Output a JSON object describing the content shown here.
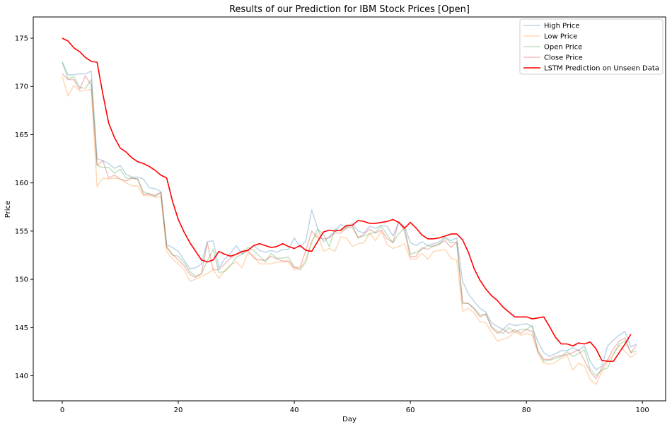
{
  "chart_data": {
    "type": "line",
    "title": "Results of our Prediction for IBM Stock Prices [Open]",
    "xlabel": "Day",
    "ylabel": "Price",
    "xlim": [
      -5,
      104
    ],
    "ylim": [
      137.4,
      177.2
    ],
    "xticks": [
      0,
      20,
      40,
      60,
      80,
      100
    ],
    "yticks": [
      140,
      145,
      150,
      155,
      160,
      165,
      170,
      175
    ],
    "grid": false,
    "legend_position": "top-right",
    "series": [
      {
        "name": "High Price",
        "color": "#1f77b4",
        "alpha": 0.3,
        "x": [
          0,
          1,
          2,
          3,
          4,
          5,
          6,
          7,
          8,
          9,
          10,
          11,
          12,
          13,
          14,
          15,
          16,
          17,
          18,
          19,
          20,
          21,
          22,
          23,
          24,
          25,
          26,
          27,
          28,
          29,
          30,
          31,
          32,
          33,
          34,
          35,
          36,
          37,
          38,
          39,
          40,
          41,
          42,
          43,
          44,
          45,
          46,
          47,
          48,
          49,
          50,
          51,
          52,
          53,
          54,
          55,
          56,
          57,
          58,
          59,
          60,
          61,
          62,
          63,
          64,
          65,
          66,
          67,
          68,
          69,
          70,
          71,
          72,
          73,
          74,
          75,
          76,
          77,
          78,
          79,
          80,
          81,
          82,
          83,
          84,
          85,
          86,
          87,
          88,
          89,
          90,
          91,
          92,
          93,
          94,
          95,
          96,
          97,
          98,
          99
        ],
        "values": [
          172.5,
          171.2,
          171.2,
          171.3,
          171.3,
          171.6,
          162.5,
          162.3,
          162.0,
          161.5,
          161.8,
          160.9,
          160.6,
          160.6,
          160.4,
          159.5,
          159.4,
          159.1,
          153.6,
          153.3,
          152.9,
          152.0,
          151.1,
          151.2,
          151.6,
          153.9,
          154.0,
          151.2,
          152.1,
          152.7,
          153.5,
          152.6,
          153.0,
          153.5,
          153.0,
          152.8,
          153.0,
          152.8,
          153.1,
          153.1,
          154.3,
          153.3,
          154.0,
          157.2,
          155.3,
          153.9,
          154.4,
          155.0,
          155.7,
          155.4,
          155.8,
          155.0,
          154.8,
          155.5,
          155.3,
          155.6,
          155.5,
          154.5,
          155.9,
          155.5,
          153.8,
          153.5,
          153.9,
          153.5,
          153.7,
          153.9,
          154.4,
          154.0,
          154.3,
          149.8,
          148.5,
          147.7,
          147.0,
          146.6,
          145.5,
          145.1,
          144.8,
          145.4,
          145.2,
          145.3,
          145.4,
          145.1,
          143.5,
          142.4,
          142.0,
          142.3,
          142.6,
          142.6,
          142.9,
          142.6,
          143.1,
          141.5,
          140.6,
          141.0,
          143.1,
          143.7,
          144.2,
          144.6,
          143.0,
          143.3
        ]
      },
      {
        "name": "Low Price",
        "color": "#ff7f0e",
        "alpha": 0.3,
        "x": [
          0,
          1,
          2,
          3,
          4,
          5,
          6,
          7,
          8,
          9,
          10,
          11,
          12,
          13,
          14,
          15,
          16,
          17,
          18,
          19,
          20,
          21,
          22,
          23,
          24,
          25,
          26,
          27,
          28,
          29,
          30,
          31,
          32,
          33,
          34,
          35,
          36,
          37,
          38,
          39,
          40,
          41,
          42,
          43,
          44,
          45,
          46,
          47,
          48,
          49,
          50,
          51,
          52,
          53,
          54,
          55,
          56,
          57,
          58,
          59,
          60,
          61,
          62,
          63,
          64,
          65,
          66,
          67,
          68,
          69,
          70,
          71,
          72,
          73,
          74,
          75,
          76,
          77,
          78,
          79,
          80,
          81,
          82,
          83,
          84,
          85,
          86,
          87,
          88,
          89,
          90,
          91,
          92,
          93,
          94,
          95,
          96,
          97,
          98,
          99
        ],
        "values": [
          171.0,
          169.0,
          170.1,
          169.5,
          169.6,
          169.7,
          159.6,
          160.5,
          160.4,
          160.5,
          160.4,
          160.0,
          159.7,
          159.7,
          158.7,
          158.7,
          158.5,
          158.6,
          152.9,
          152.1,
          151.6,
          151.0,
          149.8,
          150.0,
          150.3,
          150.6,
          151.0,
          150.1,
          150.9,
          151.5,
          151.8,
          151.2,
          152.8,
          152.4,
          151.6,
          151.6,
          151.6,
          151.8,
          151.8,
          151.8,
          151.0,
          151.1,
          152.1,
          154.0,
          154.8,
          152.9,
          153.2,
          152.9,
          154.4,
          154.3,
          153.4,
          153.7,
          153.8,
          154.8,
          154.0,
          155.0,
          153.6,
          153.2,
          153.4,
          153.7,
          152.1,
          152.1,
          152.7,
          152.1,
          152.9,
          153.0,
          153.1,
          152.2,
          152.0,
          146.7,
          147.0,
          146.5,
          145.6,
          145.5,
          144.5,
          143.6,
          143.8,
          144.0,
          144.6,
          144.2,
          144.4,
          144.2,
          142.3,
          141.3,
          141.2,
          141.4,
          141.8,
          142.1,
          140.6,
          141.3,
          141.0,
          139.6,
          139.1,
          140.4,
          141.5,
          142.3,
          143.2,
          142.5,
          141.9,
          142.4
        ]
      },
      {
        "name": "Open Price",
        "color": "#2ca02c",
        "alpha": 0.3,
        "x": [
          0,
          1,
          2,
          3,
          4,
          5,
          6,
          7,
          8,
          9,
          10,
          11,
          12,
          13,
          14,
          15,
          16,
          17,
          18,
          19,
          20,
          21,
          22,
          23,
          24,
          25,
          26,
          27,
          28,
          29,
          30,
          31,
          32,
          33,
          34,
          35,
          36,
          37,
          38,
          39,
          40,
          41,
          42,
          43,
          44,
          45,
          46,
          47,
          48,
          49,
          50,
          51,
          52,
          53,
          54,
          55,
          56,
          57,
          58,
          59,
          60,
          61,
          62,
          63,
          64,
          65,
          66,
          67,
          68,
          69,
          70,
          71,
          72,
          73,
          74,
          75,
          76,
          77,
          78,
          79,
          80,
          81,
          82,
          83,
          84,
          85,
          86,
          87,
          88,
          89,
          90,
          91,
          92,
          93,
          94,
          95,
          96,
          97,
          98,
          99
        ],
        "values": [
          172.5,
          170.8,
          171.0,
          169.9,
          169.8,
          170.7,
          161.8,
          161.6,
          161.6,
          161.0,
          161.4,
          160.5,
          160.5,
          160.4,
          159.1,
          158.8,
          158.6,
          159.0,
          153.4,
          152.5,
          152.4,
          151.7,
          150.8,
          150.3,
          150.6,
          151.9,
          153.1,
          150.7,
          150.8,
          151.4,
          152.3,
          152.6,
          153.3,
          153.0,
          152.4,
          151.8,
          152.7,
          152.2,
          152.2,
          152.3,
          151.3,
          151.0,
          151.8,
          153.8,
          155.2,
          154.7,
          153.4,
          155.2,
          155.0,
          155.4,
          155.6,
          154.3,
          154.5,
          154.7,
          154.9,
          155.5,
          154.6,
          153.8,
          154.7,
          155.3,
          152.6,
          152.8,
          153.1,
          153.5,
          153.4,
          153.6,
          154.3,
          153.8,
          153.8,
          147.5,
          147.5,
          147.0,
          146.3,
          146.4,
          145.1,
          144.6,
          144.4,
          145.0,
          144.5,
          144.8,
          144.8,
          145.2,
          142.5,
          141.5,
          141.6,
          141.8,
          142.0,
          142.5,
          142.0,
          142.3,
          142.7,
          140.7,
          140.0,
          140.6,
          140.8,
          142.2,
          143.3,
          143.6,
          142.4,
          142.6
        ]
      },
      {
        "name": "Close Price",
        "color": "#d62728",
        "alpha": 0.3,
        "x": [
          0,
          1,
          2,
          3,
          4,
          5,
          6,
          7,
          8,
          9,
          10,
          11,
          12,
          13,
          14,
          15,
          16,
          17,
          18,
          19,
          20,
          21,
          22,
          23,
          24,
          25,
          26,
          27,
          28,
          29,
          30,
          31,
          32,
          33,
          34,
          35,
          36,
          37,
          38,
          39,
          40,
          41,
          42,
          43,
          44,
          45,
          46,
          47,
          48,
          49,
          50,
          51,
          52,
          53,
          54,
          55,
          56,
          57,
          58,
          59,
          60,
          61,
          62,
          63,
          64,
          65,
          66,
          67,
          68,
          69,
          70,
          71,
          72,
          73,
          74,
          75,
          76,
          77,
          78,
          79,
          80,
          81,
          82,
          83,
          84,
          85,
          86,
          87,
          88,
          89,
          90,
          91,
          92,
          93,
          94,
          95,
          96,
          97,
          98,
          99
        ],
        "values": [
          171.3,
          170.7,
          170.7,
          169.7,
          171.1,
          170.1,
          161.8,
          162.3,
          160.5,
          160.8,
          160.4,
          160.2,
          160.5,
          160.4,
          158.8,
          158.9,
          158.7,
          159.0,
          153.3,
          152.6,
          152.0,
          151.4,
          150.5,
          150.2,
          150.6,
          153.8,
          151.0,
          151.0,
          151.6,
          152.2,
          152.6,
          152.8,
          153.0,
          152.2,
          152.0,
          152.0,
          152.4,
          152.1,
          151.9,
          151.9,
          151.2,
          151.3,
          153.0,
          155.0,
          154.3,
          154.2,
          154.3,
          154.8,
          154.8,
          155.3,
          155.4,
          154.3,
          154.7,
          155.2,
          154.8,
          155.1,
          154.2,
          153.8,
          156.0,
          155.0,
          152.3,
          152.4,
          153.3,
          153.1,
          153.5,
          153.7,
          154.0,
          153.3,
          153.9,
          147.6,
          147.5,
          146.9,
          146.1,
          146.4,
          145.0,
          144.4,
          144.8,
          144.4,
          144.8,
          144.4,
          144.8,
          144.6,
          142.6,
          141.7,
          141.7,
          142.0,
          142.1,
          142.2,
          142.4,
          142.7,
          141.6,
          140.4,
          139.7,
          140.8,
          141.7,
          142.8,
          143.6,
          143.9,
          142.4,
          143.2
        ]
      },
      {
        "name": "LSTM Prediction on Unseen Data",
        "color": "#ff0000",
        "alpha": 1.0,
        "x": [
          0,
          1,
          2,
          3,
          4,
          5,
          6,
          7,
          8,
          9,
          10,
          11,
          12,
          13,
          14,
          15,
          16,
          17,
          18,
          19,
          20,
          21,
          22,
          23,
          24,
          25,
          26,
          27,
          28,
          29,
          30,
          31,
          32,
          33,
          34,
          35,
          36,
          37,
          38,
          39,
          40,
          41,
          42,
          43,
          44,
          45,
          46,
          47,
          48,
          49,
          50,
          51,
          52,
          53,
          54,
          55,
          56,
          57,
          58,
          59,
          60,
          61,
          62,
          63,
          64,
          65,
          66,
          67,
          68,
          69,
          70,
          71,
          72,
          73,
          74,
          75,
          76,
          77,
          78,
          79,
          80,
          81,
          82,
          83,
          84,
          85,
          86,
          87,
          88,
          89,
          90,
          91,
          92,
          93,
          94,
          95,
          96,
          97,
          98
        ],
        "values": [
          175.0,
          174.7,
          174.0,
          173.6,
          173.0,
          172.6,
          172.5,
          169.2,
          166.2,
          164.7,
          163.6,
          163.2,
          162.6,
          162.2,
          162.0,
          161.7,
          161.3,
          160.8,
          160.5,
          158.1,
          156.2,
          154.9,
          153.8,
          152.9,
          152.0,
          151.8,
          152.0,
          152.9,
          152.6,
          152.4,
          152.6,
          152.9,
          153.0,
          153.5,
          153.7,
          153.5,
          153.3,
          153.4,
          153.7,
          153.4,
          153.2,
          153.5,
          153.0,
          152.9,
          153.9,
          154.9,
          155.1,
          155.0,
          155.1,
          155.6,
          155.6,
          156.1,
          156.0,
          155.8,
          155.8,
          155.9,
          156.0,
          156.2,
          155.9,
          155.3,
          155.9,
          155.3,
          154.6,
          154.2,
          154.2,
          154.3,
          154.5,
          154.7,
          154.7,
          154.1,
          152.8,
          151.1,
          149.9,
          149.0,
          148.3,
          147.8,
          147.1,
          146.6,
          146.1,
          146.1,
          146.1,
          145.9,
          146.0,
          146.1,
          145.1,
          144.0,
          143.3,
          143.3,
          143.1,
          143.4,
          143.3,
          143.5,
          142.8,
          141.6,
          141.5,
          141.5,
          142.4,
          143.3,
          144.3
        ]
      }
    ]
  }
}
